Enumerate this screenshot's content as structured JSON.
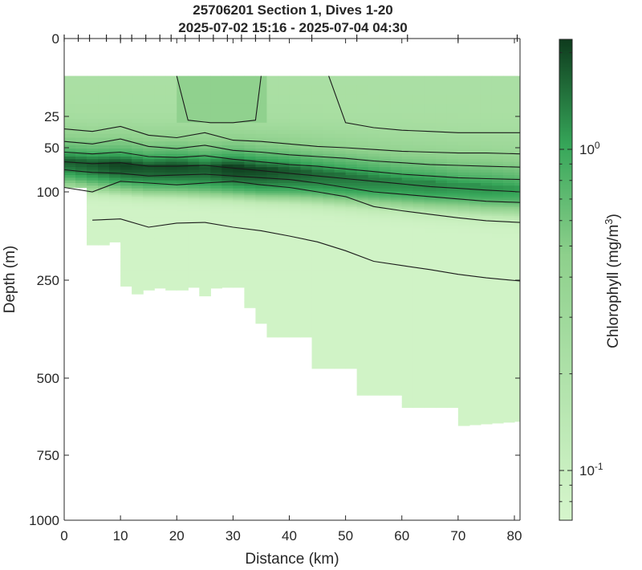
{
  "chart_data": {
    "type": "heatmap",
    "title": "25706201 Section 1, Dives 1-20",
    "subtitle": "2025-07-02 15:16 - 2025-07-04 04:30",
    "xlabel": "Distance (km)",
    "ylabel": "Depth (m)",
    "xlim": [
      0,
      81
    ],
    "ylim": [
      0,
      1000
    ],
    "x_ticks": [
      0,
      10,
      20,
      30,
      40,
      50,
      60,
      70,
      80
    ],
    "x_tick_labels": [
      "0",
      "10",
      "20",
      "30",
      "40",
      "50",
      "60",
      "70",
      "80"
    ],
    "y_ticks": [
      0,
      25,
      50,
      100,
      250,
      500,
      750,
      1000
    ],
    "y_tick_labels": [
      "0",
      "25",
      "50",
      "100",
      "250",
      "500",
      "750",
      "1000"
    ],
    "dive_marks_km": [
      0,
      2.5,
      4.5,
      7.5,
      10,
      12,
      14.5,
      17,
      19,
      21.5,
      24,
      26.5,
      29,
      31.5,
      34,
      36.5,
      44,
      52,
      61,
      70,
      80.5
    ],
    "colorbar": {
      "label": "Chlorophyll (mg/m",
      "label_sup": "3",
      "label_close": ")",
      "scale": "log",
      "range": [
        0.07,
        2.2
      ],
      "ticks": [
        {
          "value": 1.0,
          "base": "10",
          "exp": "0"
        },
        {
          "value": 0.1,
          "base": "10",
          "exp": "-1"
        }
      ],
      "color_low": "#d6f6cc",
      "color_mid": "#36a659",
      "color_high": "#0e3b1d"
    },
    "bottom_depth": {
      "x": [
        0,
        4.5,
        4.5,
        7.5,
        7.5,
        10,
        10,
        12,
        12,
        14.5,
        14.5,
        17,
        17,
        19,
        19,
        21.5,
        21.5,
        24,
        24,
        26.5,
        26.5,
        29,
        29,
        31.5,
        31.5,
        34,
        34,
        36.5,
        36.5,
        44,
        44,
        52,
        52,
        61,
        61,
        70,
        70,
        81
      ],
      "depth": [
        95,
        95,
        190,
        190,
        185,
        185,
        265,
        265,
        285,
        285,
        275,
        275,
        270,
        270,
        275,
        275,
        268,
        268,
        290,
        290,
        270,
        270,
        268,
        268,
        320,
        320,
        360,
        360,
        395,
        395,
        475,
        475,
        555,
        555,
        595,
        595,
        655,
        640
      ]
    },
    "surface_gap_depth_m": 12,
    "chlorophyll_max": {
      "x": [
        0,
        5,
        10,
        15,
        20,
        25,
        30,
        35,
        40,
        45,
        50,
        55,
        60,
        65,
        70,
        75,
        81
      ],
      "depth": [
        63,
        66,
        67,
        70,
        69,
        71,
        70,
        73,
        74,
        77,
        80,
        83,
        86,
        88,
        90,
        92,
        94
      ],
      "peak_mg_m3": [
        1.6,
        1.7,
        2.0,
        1.8,
        1.9,
        1.7,
        2.1,
        1.9,
        1.7,
        1.5,
        1.4,
        1.3,
        1.2,
        1.2,
        1.1,
        1.1,
        1.0
      ]
    },
    "surface_patch": {
      "x": [
        20,
        35
      ],
      "value": 0.45
    },
    "isolines": [
      {
        "x": [
          0,
          5,
          10,
          15,
          20,
          25,
          30,
          35,
          40,
          45,
          50,
          55,
          60,
          65,
          70,
          75,
          81
        ],
        "depth": [
          35,
          37,
          33,
          40,
          42,
          38,
          44,
          45,
          47,
          49,
          50,
          52,
          54,
          55,
          56,
          56,
          57
        ]
      },
      {
        "x": [
          0,
          5,
          10,
          15,
          20,
          25,
          30,
          35,
          40,
          45,
          50,
          55,
          60,
          65,
          70,
          75,
          81
        ],
        "depth": [
          45,
          47,
          43,
          49,
          51,
          48,
          53,
          55,
          58,
          60,
          62,
          65,
          67,
          69,
          70,
          71,
          72
        ]
      },
      {
        "x": [
          0,
          5,
          10,
          15,
          20,
          25,
          30,
          35,
          40,
          45,
          50,
          55,
          60,
          65,
          70,
          75,
          81
        ],
        "depth": [
          55,
          57,
          55,
          60,
          61,
          59,
          63,
          66,
          69,
          71,
          74,
          77,
          80,
          82,
          84,
          85,
          86
        ]
      },
      {
        "x": [
          0,
          5,
          10,
          15,
          20,
          25,
          30,
          35,
          40,
          45,
          50,
          55,
          60,
          65,
          70,
          75,
          81
        ],
        "depth": [
          66,
          68,
          67,
          71,
          71,
          70,
          73,
          76,
          79,
          82,
          85,
          88,
          91,
          94,
          96,
          98,
          100
        ]
      },
      {
        "x": [
          0,
          5,
          10,
          15,
          20,
          25,
          30,
          35,
          40,
          45,
          50,
          55,
          60,
          65,
          70,
          75,
          81
        ],
        "depth": [
          75,
          78,
          79,
          82,
          81,
          80,
          82,
          84,
          86,
          90,
          95,
          100,
          104,
          108,
          112,
          116,
          118
        ]
      },
      {
        "x": [
          0,
          5,
          10,
          15,
          20,
          25,
          30,
          35,
          40,
          45,
          50,
          55,
          60,
          65,
          70,
          75,
          81
        ],
        "depth": [
          95,
          100,
          88,
          90,
          92,
          90,
          88,
          92,
          95,
          100,
          108,
          125,
          132,
          138,
          144,
          149,
          152
        ]
      },
      {
        "x": [
          5,
          10,
          15,
          20,
          25,
          30,
          35,
          40,
          45,
          50,
          55,
          60,
          65,
          70,
          75,
          81
        ],
        "depth": [
          148,
          146,
          160,
          153,
          152,
          160,
          166,
          175,
          185,
          200,
          218,
          225,
          232,
          240,
          246,
          252
        ]
      },
      {
        "x": [
          20,
          22,
          26,
          30,
          34,
          35
        ],
        "depth": [
          12,
          28,
          30,
          30,
          28,
          12
        ]
      },
      {
        "x": [
          47,
          50,
          55,
          60,
          65,
          70,
          75,
          81
        ],
        "depth": [
          12,
          30,
          34,
          36,
          37,
          38,
          38,
          38
        ]
      }
    ]
  }
}
